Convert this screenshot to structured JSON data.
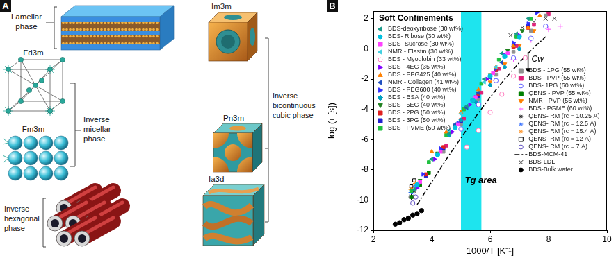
{
  "panel_a": {
    "label": "A",
    "lamellar_phase": [
      "Lamellar",
      "phase"
    ],
    "fd3m": "Fd3m",
    "fm3m": "Fm3m",
    "inverse_micellar_phase": [
      "Inverse",
      "micellar",
      "phase"
    ],
    "inverse_hexagonal_phase": [
      "Inverse",
      "hexagonal",
      "phase"
    ],
    "im3m": "Im3m",
    "pn3m": "Pn3m",
    "ia3d": "Ia3d",
    "inverse_bicontinuous_cubic_phase": [
      "Inverse",
      "bicontinuous",
      "cubic phase"
    ]
  },
  "chart_data": {
    "type": "scatter",
    "panel_label": "B",
    "legend_title": "Soft Confinements",
    "x_label": "1000/T [K⁻¹]",
    "y_label": "log (τ [s])",
    "xlim": [
      2,
      10
    ],
    "xticks": [
      2,
      4,
      6,
      8,
      10
    ],
    "ylim": [
      -12,
      2.5
    ],
    "yticks": [
      -12,
      -10,
      -8,
      -6,
      -4,
      -2,
      0,
      2
    ],
    "grid": false,
    "legend": "inside",
    "tg_area": {
      "text": "Tg area",
      "xlim": [
        5.0,
        5.7
      ],
      "y": -8.7,
      "color": "#1ee4ee"
    },
    "cw_arrow": {
      "text": "Cw",
      "x": 7.3,
      "y": [
        -0.2,
        -1.6
      ]
    },
    "series": [
      {
        "name": "BDS-deoxyribose (30 wt%)",
        "color": "#1a9a8a",
        "marker": "triangle-left",
        "x": [
          3.4,
          4.0,
          4.6,
          5.2,
          5.8,
          6.4,
          6.9,
          7.3
        ],
        "values": [
          -9.3,
          -7.3,
          -5.6,
          -3.8,
          -2.0,
          -0.3,
          1.0,
          2.0
        ]
      },
      {
        "name": "BDS- Ribose (30 wt%)",
        "color": "#00c0e0",
        "marker": "circle",
        "x": [
          3.5,
          4.2,
          4.8,
          5.4,
          6.0,
          6.5,
          7.0
        ],
        "values": [
          -9.0,
          -7.0,
          -5.2,
          -3.4,
          -1.8,
          -0.5,
          0.8
        ]
      },
      {
        "name": "BDS- Sucrose (30 wt%)",
        "color": "#ff40ff",
        "marker": "square",
        "x": [
          3.6,
          4.3,
          4.9,
          5.5,
          6.1,
          6.6
        ],
        "values": [
          -8.8,
          -6.8,
          -5.0,
          -3.2,
          -1.6,
          -0.3
        ]
      },
      {
        "name": "NMR - Elastin (30 wt%)",
        "color": "#40d0e0",
        "marker": "triangle-left",
        "x": [
          4.6,
          5.0,
          5.4,
          5.8,
          6.2
        ],
        "values": [
          -5.4,
          -4.3,
          -3.2,
          -2.2,
          -1.2
        ]
      },
      {
        "name": "BDS - Myoglobin (33 wt%)",
        "color": "#ff80c0",
        "marker": "circle-open",
        "x": [
          5.2,
          5.6,
          6.0,
          6.4,
          6.8,
          7.2
        ],
        "values": [
          -6.5,
          -5.4,
          -4.2,
          -3.0,
          -1.8,
          -0.6
        ]
      },
      {
        "name": "BDS - 4EG (35 wt%)",
        "color": "#8000ff",
        "marker": "triangle-right",
        "x": [
          3.5,
          4.1,
          4.7,
          5.3,
          5.9,
          6.5,
          7.0
        ],
        "values": [
          -9.2,
          -7.3,
          -5.5,
          -3.7,
          -2.0,
          -0.4,
          0.9
        ]
      },
      {
        "name": "BDS - PPG425 (40 wt%)",
        "color": "#ff8000",
        "marker": "triangle",
        "x": [
          4.0,
          4.5,
          5.0,
          5.6,
          6.2,
          6.8,
          7.3,
          7.7
        ],
        "values": [
          -6.8,
          -5.5,
          -4.2,
          -2.7,
          -1.2,
          0.2,
          1.4,
          2.2
        ]
      },
      {
        "name": "NMR - Collagen (41 wt%)",
        "color": "#2050c0",
        "marker": "triangle-left",
        "x": [
          4.8,
          5.2,
          5.6,
          6.0,
          6.4
        ],
        "values": [
          -5.0,
          -3.9,
          -2.9,
          -1.9,
          -0.9
        ]
      },
      {
        "name": "BDS - PEG600 (40 wt%)",
        "color": "#3030ff",
        "marker": "triangle-right",
        "x": [
          3.7,
          4.3,
          4.9,
          5.5,
          6.2,
          6.8,
          7.3,
          7.6
        ],
        "values": [
          -8.3,
          -6.6,
          -4.9,
          -3.2,
          -1.3,
          0.4,
          1.7,
          2.4
        ]
      },
      {
        "name": "BDS - BSA (40 wt%)",
        "color": "#00a0c0",
        "marker": "diamond",
        "x": [
          4.6,
          5.0,
          5.5,
          6.0,
          6.5,
          7.0
        ],
        "values": [
          -5.7,
          -4.7,
          -3.5,
          -2.4,
          -1.2,
          0.0
        ]
      },
      {
        "name": "BDS - 5EG (40 wt%)",
        "color": "#208020",
        "marker": "triangle-down",
        "x": [
          3.6,
          4.2,
          4.8,
          5.4,
          6.0,
          6.6,
          7.1
        ],
        "values": [
          -8.7,
          -6.9,
          -5.1,
          -3.4,
          -1.7,
          -0.1,
          1.2
        ]
      },
      {
        "name": "BDS - 2PG (50 wt%)",
        "color": "#e02020",
        "marker": "square",
        "x": [
          3.8,
          4.4,
          5.0,
          5.6,
          6.2,
          6.8,
          7.3
        ],
        "values": [
          -8.3,
          -6.5,
          -4.7,
          -3.0,
          -1.4,
          0.1,
          1.4
        ]
      },
      {
        "name": "BDS - 3PG (50 wt%)",
        "color": "#2020d0",
        "marker": "square",
        "x": [
          3.8,
          4.4,
          5.0,
          5.6,
          6.2,
          6.8,
          7.3
        ],
        "values": [
          -8.4,
          -6.6,
          -4.8,
          -3.1,
          -1.4,
          0.2,
          1.5
        ]
      },
      {
        "name": "BDS - PVME (50 wt%)",
        "color": "#20c040",
        "marker": "square",
        "x": [
          3.3,
          3.9,
          4.5,
          5.1,
          5.7,
          6.3,
          6.9,
          7.4
        ],
        "values": [
          -9.4,
          -7.5,
          -5.7,
          -4.0,
          -2.3,
          -0.7,
          0.8,
          2.0
        ]
      },
      {
        "name": "BDS - 1PG (55 wt%)",
        "color": "#909090",
        "marker": "square",
        "x": [
          4.4,
          5.0,
          5.6,
          6.2,
          6.8,
          7.4,
          7.9
        ],
        "values": [
          -6.8,
          -5.0,
          -3.3,
          -1.7,
          -0.2,
          1.2,
          2.2
        ]
      },
      {
        "name": "BDS - PVP (55 wt%)",
        "color": "#e0207a",
        "marker": "square",
        "x": [
          4.5,
          5.1,
          5.7,
          6.3,
          6.9,
          7.5,
          8.0
        ],
        "values": [
          -6.4,
          -4.6,
          -2.9,
          -1.3,
          0.2,
          1.6,
          2.3
        ]
      },
      {
        "name": "BDS- 1PG (60 wt%)",
        "color": "#6060ff",
        "marker": "circle-open",
        "x": [
          5.0,
          5.6,
          6.2,
          6.8,
          7.4,
          7.9
        ],
        "values": [
          -5.3,
          -3.7,
          -2.1,
          -0.6,
          0.7,
          1.5
        ]
      },
      {
        "name": "QENS - PVP (55 wt%)",
        "color": "#008000",
        "marker": "square",
        "x": [
          3.3,
          3.6,
          3.9
        ],
        "values": [
          -9.8,
          -9.0,
          -8.2
        ]
      },
      {
        "name": "NMR - PVP (55 wt%)",
        "color": "#ff8000",
        "marker": "triangle-down",
        "x": [
          5.5,
          6.0,
          6.5,
          7.0,
          7.5
        ],
        "values": [
          -3.5,
          -2.2,
          -1.0,
          0.2,
          1.2
        ]
      },
      {
        "name": "BDS - PGME (60 wt%)",
        "color": "#ff40ff",
        "marker": "plus",
        "x": [
          5.6,
          6.2,
          6.8,
          7.4,
          8.0,
          8.4
        ],
        "values": [
          -3.6,
          -2.1,
          -0.7,
          0.6,
          1.3,
          1.5
        ]
      },
      {
        "name": "QENS- RM (rc = 10.25 A)",
        "color": "#000000",
        "marker": "star",
        "x": [
          3.3,
          3.4
        ],
        "values": [
          -9.8,
          -9.4
        ]
      },
      {
        "name": "QENS- RM (rc = 12.5 A)",
        "color": "#2060ff",
        "marker": "star",
        "x": [
          3.3,
          3.45
        ],
        "values": [
          -9.5,
          -9.1
        ]
      },
      {
        "name": "QENS- RM (rc = 15.4 A)",
        "color": "#ff8000",
        "marker": "star",
        "x": [
          3.3,
          3.45
        ],
        "values": [
          -9.3,
          -8.9
        ]
      },
      {
        "name": "QENS- RM (rc = 12 A)",
        "color": "#000000",
        "marker": "square-open",
        "x": [
          3.3,
          3.4
        ],
        "values": [
          -9.1,
          -8.7
        ]
      },
      {
        "name": "QENS- RM (rc = 7 A)",
        "color": "#6050c0",
        "marker": "circle-open",
        "x": [
          3.35,
          3.45
        ],
        "values": [
          -10.2,
          -9.8
        ]
      },
      {
        "name": "BDS-MCM-41",
        "color": "#000000",
        "marker": "none",
        "line_style": "dashdot",
        "x": [
          3.5,
          4.0,
          4.5,
          5.0,
          5.5,
          6.0,
          6.5,
          7.0,
          7.5,
          7.9
        ],
        "values": [
          -10.3,
          -8.8,
          -7.3,
          -5.9,
          -4.5,
          -3.2,
          -2.0,
          -0.9,
          0.1,
          0.8
        ]
      },
      {
        "name": "BDS-LDL",
        "color": "#333333",
        "marker": "x",
        "x": [
          6.7,
          7.1,
          7.5,
          7.9,
          8.2
        ],
        "values": [
          0.9,
          1.4,
          1.8,
          2.0,
          2.0
        ]
      },
      {
        "name": "BDS-Bulk water",
        "color": "#000000",
        "marker": "circle",
        "x": [
          2.75,
          2.9,
          3.05,
          3.2,
          3.35,
          3.5,
          3.65
        ],
        "values": [
          -11.6,
          -11.5,
          -11.3,
          -11.2,
          -11.0,
          -10.9,
          -10.7
        ]
      }
    ]
  }
}
